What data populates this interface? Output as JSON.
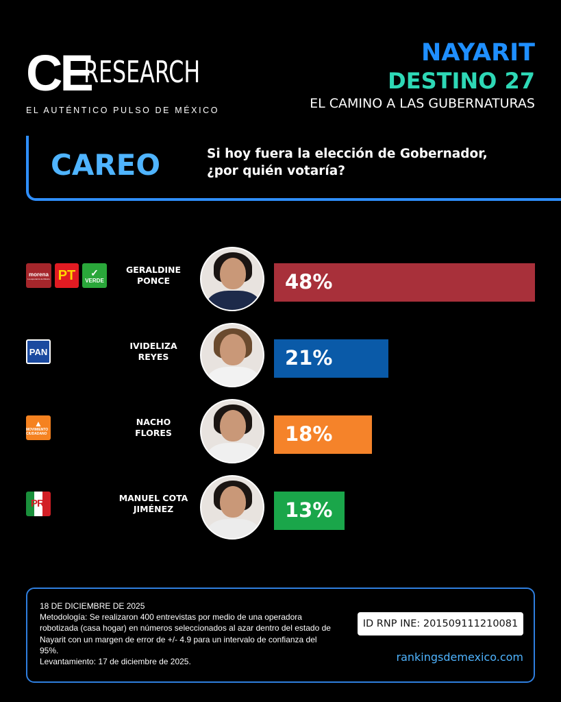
{
  "header": {
    "logo_ce": "CE",
    "logo_research": "RESEARCH",
    "tagline": "EL AUTÉNTICO PULSO DE MÉXICO",
    "title_line1": "NAYARIT",
    "title_line2": "DESTINO 27",
    "title_line3": "EL CAMINO A LAS GUBERNATURAS"
  },
  "careo": {
    "label": "CAREO",
    "question": "Si hoy fuera la elección de Gobernador, ¿por quién votaría?"
  },
  "parties": {
    "morena": "morena",
    "morena_sub": "La esperanza de México",
    "pt": "PT",
    "verde": "VERDE",
    "pan": "PAN",
    "mc": "MOVIMIENTO CIUDADANO",
    "pri": "PRI"
  },
  "chart_data": {
    "type": "bar",
    "orientation": "horizontal",
    "categories": [
      "GERALDINE PONCE",
      "IVIDELIZA REYES",
      "NACHO FLORES",
      "MANUEL COTA JIMÉNEZ"
    ],
    "values": [
      48,
      21,
      18,
      13
    ],
    "value_labels": [
      "48%",
      "21%",
      "18%",
      "13%"
    ],
    "unit": "%",
    "xlim": [
      0,
      48
    ],
    "colors": [
      "#a8303a",
      "#0a5aa8",
      "#f5832a",
      "#1aa64a"
    ],
    "grid": false
  },
  "candidates": [
    {
      "name_line1": "GERALDINE",
      "name_line2": "PONCE",
      "parties": [
        "morena",
        "pt",
        "verde"
      ],
      "hair_color": "#1a1412",
      "outfit_color": "#1d2a4a"
    },
    {
      "name_line1": "IVIDELIZA",
      "name_line2": "REYES",
      "parties": [
        "pan"
      ],
      "hair_color": "#6a4a2e",
      "outfit_color": "#f2f2f2"
    },
    {
      "name_line1": "NACHO",
      "name_line2": "FLORES",
      "parties": [
        "mc"
      ],
      "hair_color": "#1b1512",
      "outfit_color": "#f0f0f0"
    },
    {
      "name_line1": "MANUEL COTA",
      "name_line2": "JIMÉNEZ",
      "parties": [
        "pri"
      ],
      "hair_color": "#1b1512",
      "outfit_color": "#ececec"
    }
  ],
  "footer": {
    "date": "18 DE DICIEMBRE DE 2025",
    "methodology": "Metodología: Se realizaron 400 entrevistas por medio de una operadora robotizada (casa hogar) en números seleccionados al azar dentro del estado de Nayarit con un margen de error de +/- 4.9 para un intervalo de confianza del 95%.",
    "fieldwork": "Levantamiento: 17 de diciembre de 2025.",
    "rnp_id": "ID RNP INE: 201509111210081",
    "website": "rankingsdemexico.com"
  }
}
